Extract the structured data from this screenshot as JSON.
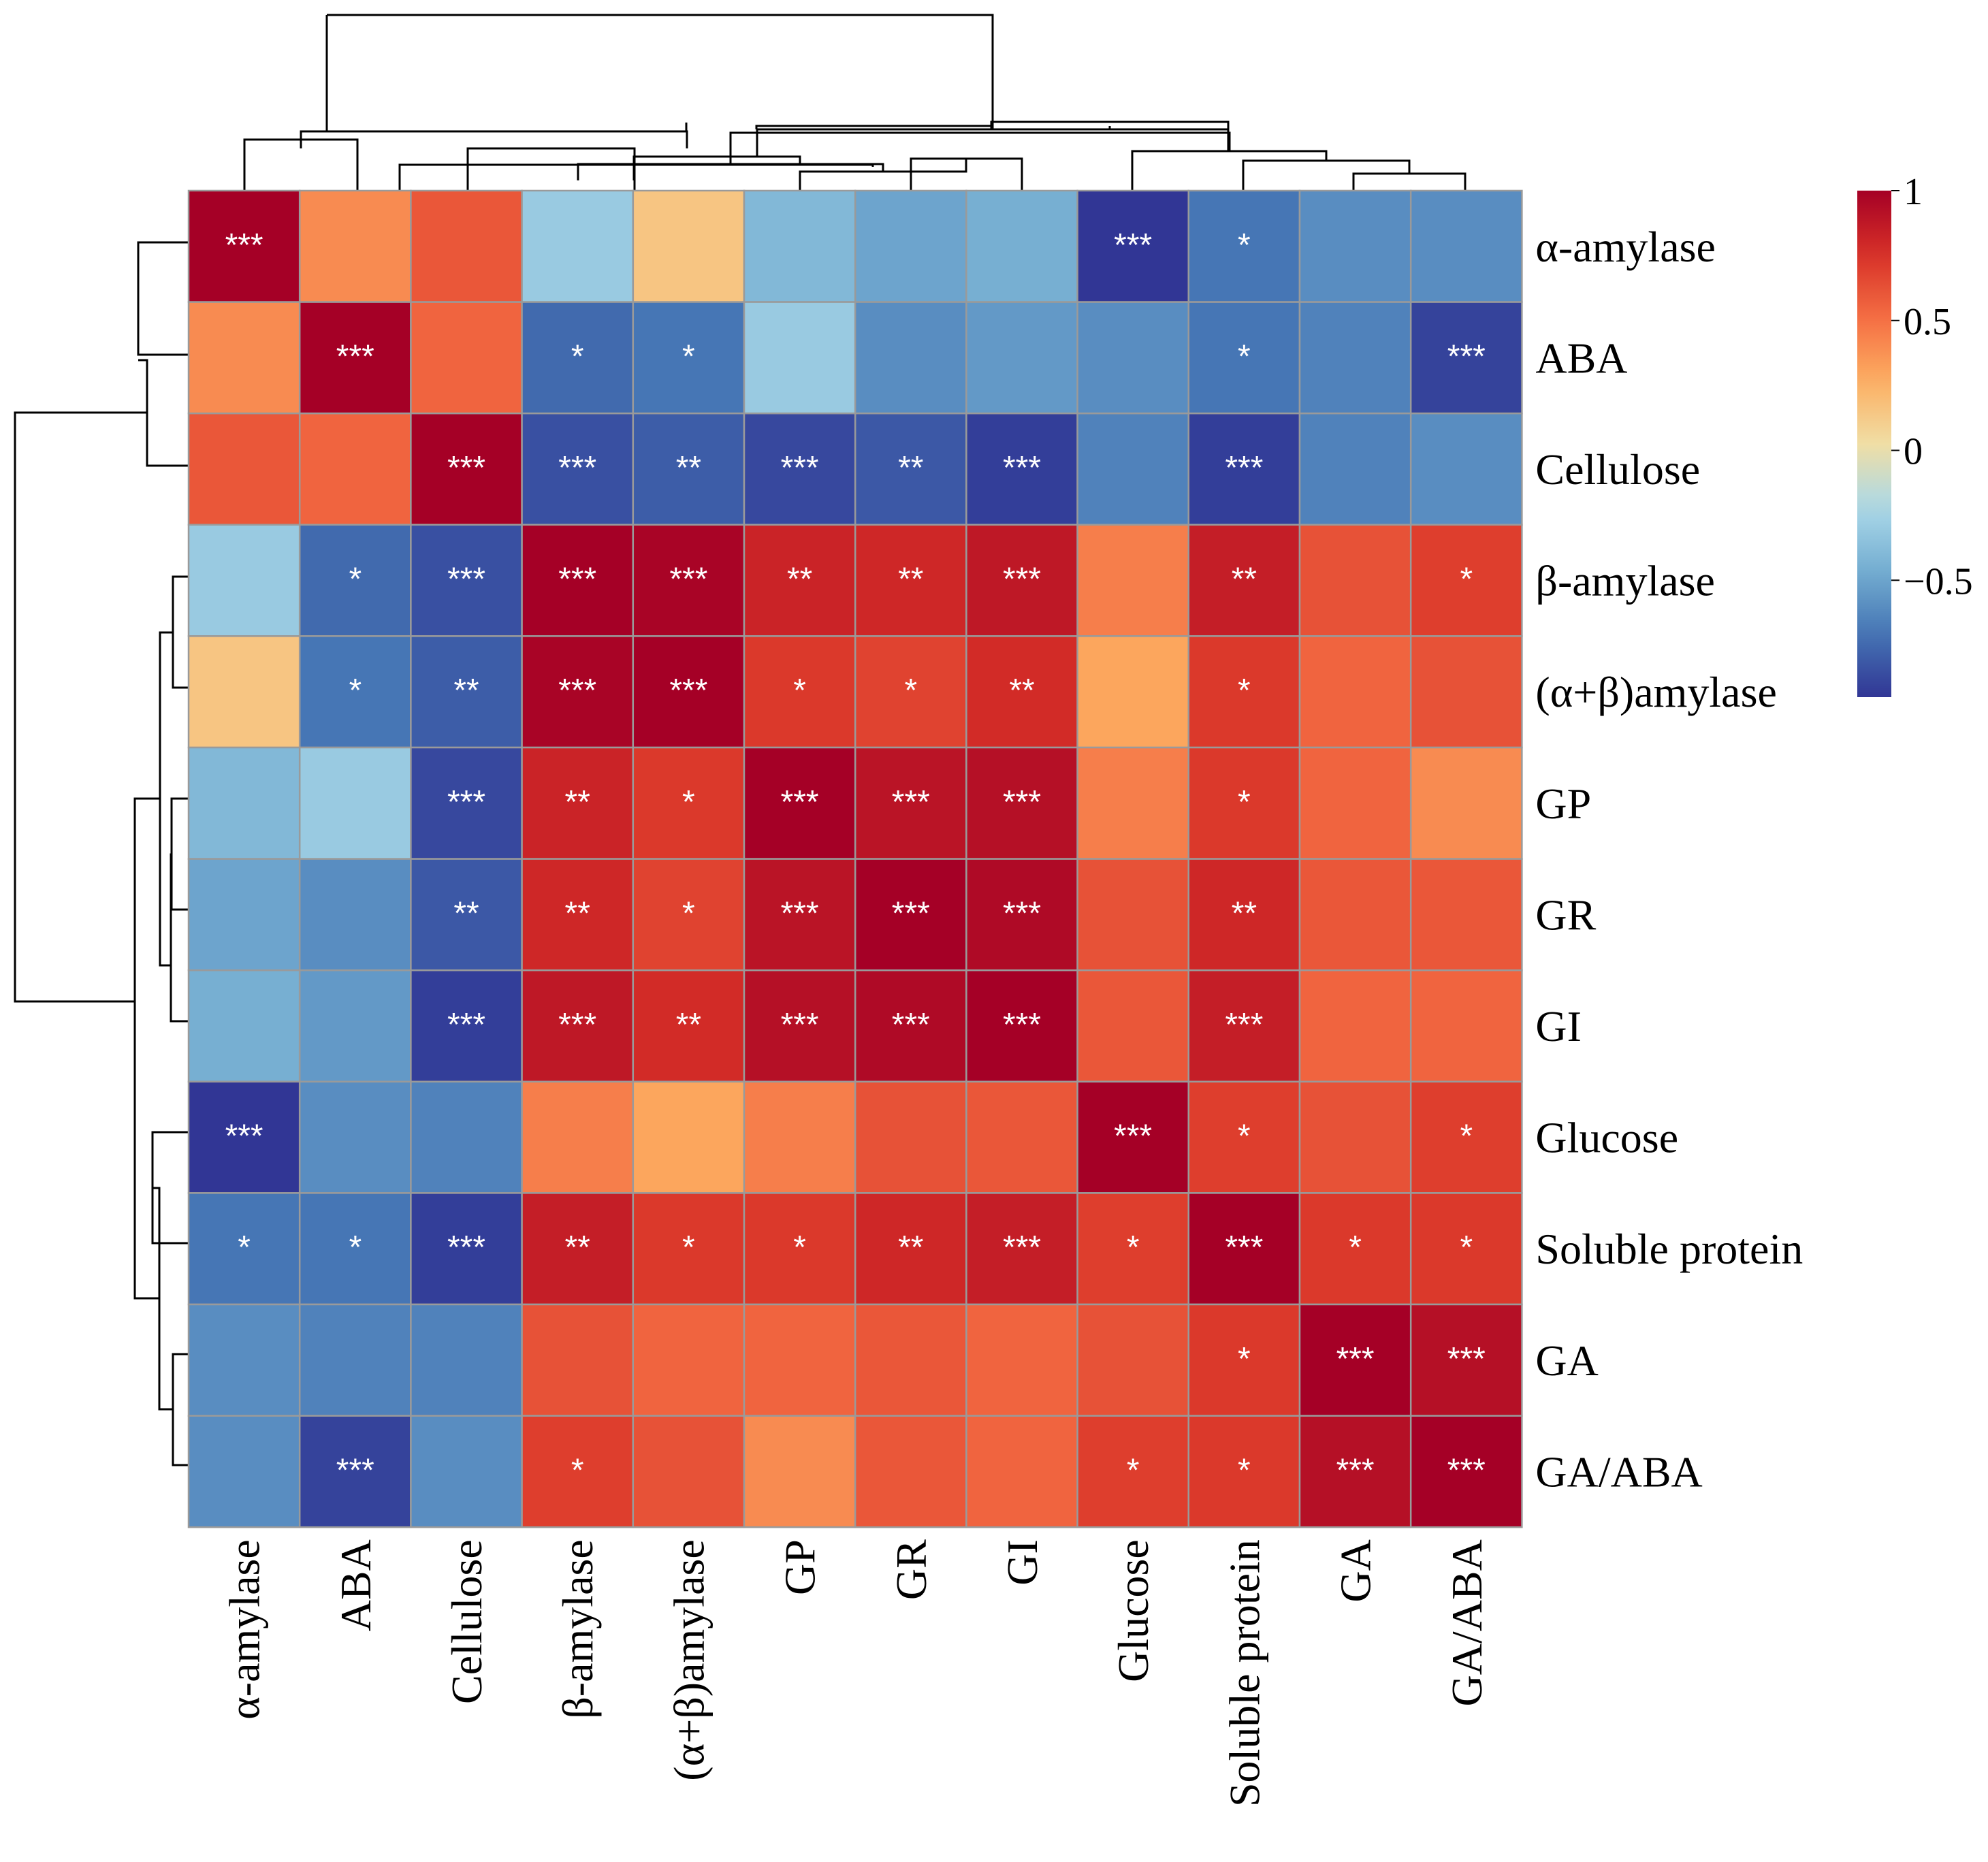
{
  "chart_data": {
    "type": "heatmap",
    "title": "",
    "row_labels": [
      "α-amylase",
      "ABA",
      "Cellulose",
      "β-amylase",
      "(α+β)amylase",
      "GP",
      "GR",
      "GI",
      "Glucose",
      "Soluble protein",
      "GA",
      "GA/ABA"
    ],
    "col_labels": [
      "α-amylase",
      "ABA",
      "Cellulose",
      "β-amylase",
      "(α+β)amylase",
      "GP",
      "GR",
      "GI",
      "Glucose",
      "Soluble protein",
      "GA",
      "GA/ABA"
    ],
    "values": [
      [
        1.0,
        0.4,
        0.6,
        -0.3,
        0.15,
        -0.4,
        -0.5,
        -0.45,
        -0.95,
        -0.7,
        -0.6,
        -0.6
      ],
      [
        0.4,
        1.0,
        0.55,
        -0.75,
        -0.7,
        -0.3,
        -0.6,
        -0.55,
        -0.6,
        -0.7,
        -0.65,
        -0.9
      ],
      [
        0.6,
        0.55,
        1.0,
        -0.85,
        -0.8,
        -0.88,
        -0.82,
        -0.92,
        -0.65,
        -0.92,
        -0.65,
        -0.6
      ],
      [
        -0.3,
        -0.75,
        -0.85,
        1.0,
        0.98,
        0.82,
        0.8,
        0.88,
        0.45,
        0.85,
        0.62,
        0.7
      ],
      [
        0.15,
        -0.7,
        -0.8,
        0.98,
        1.0,
        0.72,
        0.68,
        0.78,
        0.3,
        0.72,
        0.55,
        0.62
      ],
      [
        -0.4,
        -0.3,
        -0.88,
        0.82,
        0.72,
        1.0,
        0.9,
        0.92,
        0.45,
        0.72,
        0.55,
        0.4
      ],
      [
        -0.5,
        -0.6,
        -0.82,
        0.8,
        0.68,
        0.9,
        1.0,
        0.95,
        0.62,
        0.8,
        0.6,
        0.6
      ],
      [
        -0.45,
        -0.55,
        -0.92,
        0.88,
        0.78,
        0.92,
        0.95,
        1.0,
        0.6,
        0.85,
        0.55,
        0.55
      ],
      [
        -0.95,
        -0.6,
        -0.65,
        0.45,
        0.3,
        0.45,
        0.62,
        0.6,
        1.0,
        0.7,
        0.62,
        0.7
      ],
      [
        -0.7,
        -0.7,
        -0.92,
        0.85,
        0.72,
        0.72,
        0.8,
        0.85,
        0.7,
        1.0,
        0.72,
        0.72
      ],
      [
        -0.6,
        -0.65,
        -0.65,
        0.62,
        0.55,
        0.55,
        0.6,
        0.55,
        0.62,
        0.72,
        1.0,
        0.92
      ],
      [
        -0.6,
        -0.9,
        -0.6,
        0.7,
        0.62,
        0.4,
        0.6,
        0.55,
        0.7,
        0.72,
        0.92,
        1.0
      ]
    ],
    "significance": [
      [
        "***",
        "",
        "",
        "",
        "",
        "",
        "",
        "",
        "***",
        "*",
        "",
        ""
      ],
      [
        "",
        "***",
        "",
        "*",
        "*",
        "",
        "",
        "",
        "",
        "*",
        "",
        "***"
      ],
      [
        "",
        "",
        "***",
        "***",
        "**",
        "***",
        "**",
        "***",
        "",
        "***",
        "",
        ""
      ],
      [
        "",
        "*",
        "***",
        "***",
        "***",
        "**",
        "**",
        "***",
        "",
        "**",
        "",
        "*"
      ],
      [
        "",
        "*",
        "**",
        "***",
        "***",
        "*",
        "*",
        "**",
        "",
        "*",
        "",
        ""
      ],
      [
        "",
        "",
        "***",
        "**",
        "*",
        "***",
        "***",
        "***",
        "",
        "*",
        "",
        ""
      ],
      [
        "",
        "",
        "**",
        "**",
        "*",
        "***",
        "***",
        "***",
        "",
        "**",
        "",
        ""
      ],
      [
        "",
        "",
        "***",
        "***",
        "**",
        "***",
        "***",
        "***",
        "",
        "***",
        "",
        ""
      ],
      [
        "***",
        "",
        "",
        "",
        "",
        "",
        "",
        "",
        "***",
        "*",
        "",
        "*"
      ],
      [
        "*",
        "*",
        "***",
        "**",
        "*",
        "*",
        "**",
        "***",
        "*",
        "***",
        "*",
        "*"
      ],
      [
        "",
        "",
        "",
        "",
        "",
        "",
        "",
        "",
        "",
        "*",
        "***",
        "***"
      ],
      [
        "",
        "***",
        "",
        "*",
        "",
        "",
        "",
        "",
        "*",
        "*",
        "***",
        "***"
      ]
    ],
    "legend": {
      "ticks": [
        "1",
        "0.5",
        "0",
        "−0.5"
      ],
      "tick_values": [
        1,
        0.5,
        0,
        -0.5
      ],
      "range": [
        -0.95,
        1
      ],
      "placement": "right"
    },
    "color_scale": [
      "#313695",
      "#4575b4",
      "#74add1",
      "#abd9e9",
      "#f0deA5",
      "#fdae61",
      "#f46d43",
      "#d73027",
      "#a50026"
    ],
    "col_dendrogram_order": [
      0,
      1,
      2,
      3,
      4,
      5,
      6,
      7,
      8,
      9,
      10,
      11
    ],
    "row_dendrogram_order": [
      0,
      1,
      2,
      3,
      4,
      5,
      6,
      7,
      8,
      9,
      10,
      11
    ]
  }
}
